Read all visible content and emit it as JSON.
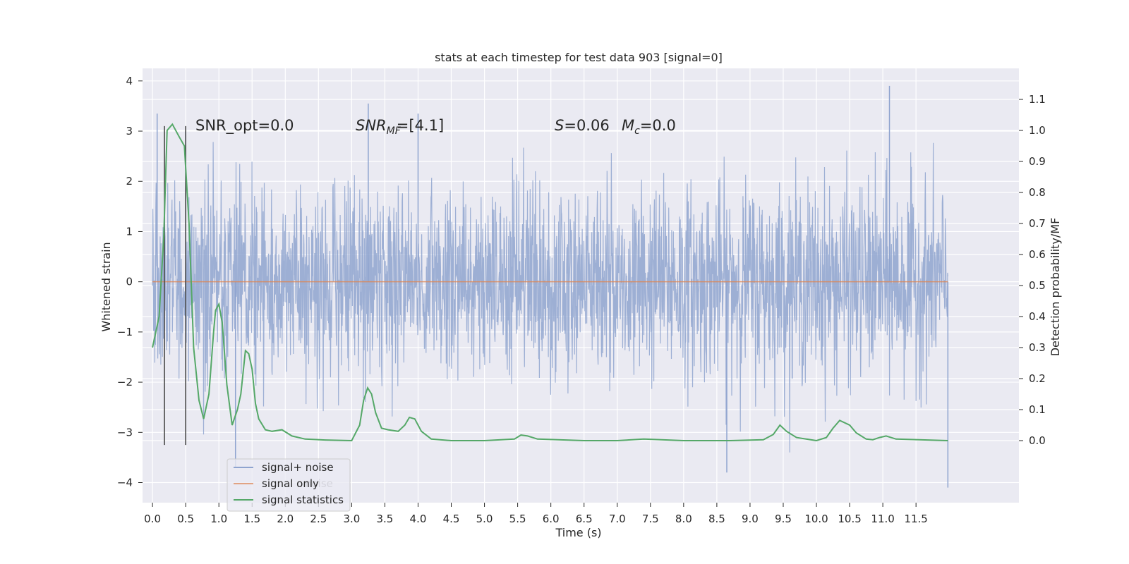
{
  "chart_data": {
    "type": "line",
    "title": "stats at each timestep for test data 903 [signal=0]",
    "xlabel": "Time (s)",
    "ylabel": "Whitened strain",
    "ylabel_right": "Detection probability/MF",
    "xlim": [
      -0.15,
      13.05
    ],
    "ylim": [
      -4.4,
      4.25
    ],
    "ylim_right": [
      -0.2,
      1.2
    ],
    "x_ticks": [
      0.0,
      0.5,
      1.0,
      1.5,
      2.0,
      2.5,
      3.0,
      3.5,
      4.0,
      4.5,
      5.0,
      5.5,
      6.0,
      6.5,
      7.0,
      7.5,
      8.0,
      8.5,
      9.0,
      9.5,
      10.0,
      10.5,
      11.0,
      11.5
    ],
    "x_tick_labels": [
      "0.0",
      "0.5",
      "1.0",
      "1.5",
      "2.0",
      "2.5",
      "3.0",
      "3.5",
      "4.0",
      "4.5",
      "5.0",
      "5.5",
      "6.0",
      "6.5",
      "7.0",
      "7.5",
      "8.0",
      "8.5",
      "9.0",
      "9.5",
      "10.0",
      "10.5",
      "11.0",
      "11.5"
    ],
    "y_ticks": [
      -4,
      -3,
      -2,
      -1,
      0,
      1,
      2,
      3,
      4
    ],
    "y_tick_labels": [
      "−4",
      "−3",
      "−2",
      "−1",
      "0",
      "1",
      "2",
      "3",
      "4"
    ],
    "y_ticks_right": [
      0.0,
      0.1,
      0.2,
      0.3,
      0.4,
      0.5,
      0.6,
      0.7,
      0.8,
      0.9,
      1.0,
      1.1
    ],
    "y_tick_labels_right": [
      "0.0",
      "0.1",
      "0.2",
      "0.3",
      "0.4",
      "0.5",
      "0.6",
      "0.7",
      "0.8",
      "0.9",
      "1.0",
      "1.1"
    ],
    "grid": true,
    "legend_position": "lower-left",
    "annotations": {
      "snr_opt": "SNR_opt=0.0",
      "snr_mf": "SNR",
      "snr_mf_sub": "MF",
      "snr_mf_value": "=[4.1]",
      "s_label": "S",
      "s_value": "=0.06",
      "mc_label": "M",
      "mc_sub": "c",
      "mc_value": "=0.0"
    },
    "series": [
      {
        "name": "signal+ noise",
        "color": "#8fa4cf",
        "x_range": [
          0.0,
          11.98
        ],
        "approx_std": 0.95,
        "notable_peaks": [
          [
            0.07,
            3.35
          ],
          [
            0.5,
            3.0
          ],
          [
            3.25,
            3.55
          ],
          [
            4.0,
            3.35
          ],
          [
            11.1,
            3.9
          ],
          [
            11.98,
            -4.1
          ],
          [
            8.65,
            -3.8
          ],
          [
            1.25,
            -3.7
          ]
        ]
      },
      {
        "name": "signal only",
        "color": "#dd8452",
        "x": [
          0.0,
          11.98
        ],
        "y": [
          0.0,
          0.0
        ]
      },
      {
        "name": "signal statistics",
        "color": "#55a868",
        "axis": "right",
        "x": [
          0.0,
          0.1,
          0.17,
          0.22,
          0.3,
          0.4,
          0.48,
          0.55,
          0.62,
          0.7,
          0.77,
          0.85,
          0.92,
          0.95,
          1.0,
          1.05,
          1.12,
          1.2,
          1.28,
          1.33,
          1.4,
          1.45,
          1.5,
          1.55,
          1.6,
          1.7,
          1.8,
          1.95,
          2.1,
          2.3,
          2.6,
          3.0,
          3.12,
          3.18,
          3.24,
          3.3,
          3.36,
          3.45,
          3.55,
          3.7,
          3.8,
          3.87,
          3.95,
          4.05,
          4.2,
          4.5,
          5.0,
          5.45,
          5.55,
          5.65,
          5.8,
          6.5,
          7.0,
          7.4,
          8.0,
          8.7,
          9.2,
          9.35,
          9.45,
          9.55,
          9.7,
          10.0,
          10.15,
          10.25,
          10.35,
          10.5,
          10.6,
          10.75,
          10.85,
          10.95,
          11.05,
          11.2,
          11.98
        ],
        "y": [
          0.3,
          0.4,
          0.66,
          1.0,
          1.02,
          0.98,
          0.95,
          0.7,
          0.3,
          0.13,
          0.07,
          0.15,
          0.35,
          0.42,
          0.44,
          0.38,
          0.18,
          0.05,
          0.1,
          0.15,
          0.29,
          0.28,
          0.23,
          0.12,
          0.07,
          0.035,
          0.03,
          0.035,
          0.015,
          0.005,
          0.002,
          0.0,
          0.05,
          0.13,
          0.17,
          0.15,
          0.09,
          0.04,
          0.035,
          0.03,
          0.05,
          0.075,
          0.07,
          0.03,
          0.005,
          0.0,
          0.0,
          0.005,
          0.018,
          0.015,
          0.005,
          0.0,
          0.0,
          0.005,
          0.0,
          0.0,
          0.003,
          0.02,
          0.05,
          0.03,
          0.01,
          0.0,
          0.01,
          0.04,
          0.065,
          0.05,
          0.025,
          0.005,
          0.003,
          0.01,
          0.015,
          0.005,
          0.0
        ]
      }
    ],
    "vlines": [
      {
        "x": 0.18,
        "y0": -3.25,
        "y1": 3.1
      },
      {
        "x": 0.5,
        "y0": -3.25,
        "y1": 3.1
      }
    ],
    "legend": {
      "labels": [
        "signal+ noise",
        "signal only",
        "signal statistics"
      ],
      "behind_label": "noise"
    }
  }
}
